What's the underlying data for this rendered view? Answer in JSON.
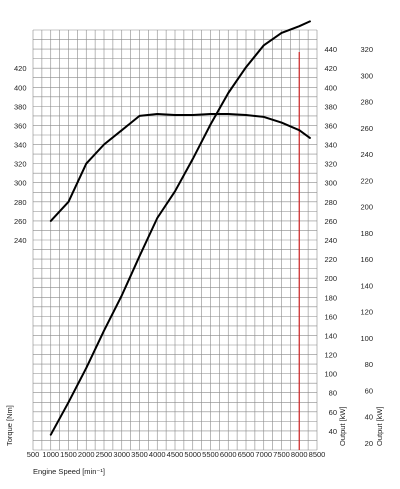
{
  "chart_data": {
    "type": "line",
    "title": "",
    "xlabel": "Engine Speed [min⁻¹]",
    "x_ticks": [
      "500",
      "1000",
      "1500",
      "2000",
      "2500",
      "3000",
      "3500",
      "4000",
      "4500",
      "5000",
      "5500",
      "6000",
      "6500",
      "7000",
      "7500",
      "8000",
      "8500"
    ],
    "xlim": [
      500,
      8500
    ],
    "grid": true,
    "axes": {
      "torque": {
        "label": "Torque [Nm]",
        "ticks": [
          "240",
          "260",
          "280",
          "300",
          "320",
          "340",
          "360",
          "380",
          "400",
          "420"
        ],
        "range": [
          20,
          460
        ]
      },
      "output_inner": {
        "label": "Output [kW]",
        "ticks": [
          "40",
          "60",
          "80",
          "100",
          "120",
          "140",
          "160",
          "180",
          "200",
          "220",
          "240",
          "260",
          "280",
          "300",
          "320",
          "340",
          "360",
          "380",
          "400",
          "420",
          "440"
        ],
        "range": [
          20,
          460
        ]
      },
      "output_outer": {
        "label": "Output [kW]",
        "ticks": [
          "20",
          "40",
          "60",
          "80",
          "100",
          "120",
          "140",
          "160",
          "180",
          "200",
          "220",
          "240",
          "260",
          "280",
          "300",
          "320"
        ],
        "range": [
          14.5,
          334.5
        ]
      }
    },
    "marker": {
      "x": 8000,
      "color": "#cc2222"
    },
    "series": [
      {
        "axis": "torque",
        "x": [
          1000,
          1500,
          2000,
          2500,
          3000,
          3500,
          4000,
          4500,
          5000,
          5500,
          6000,
          6500,
          7000,
          7500,
          8000,
          8300
        ],
        "y": [
          260,
          280,
          320,
          340,
          355,
          370,
          372,
          371,
          371,
          372,
          372,
          371,
          369,
          363,
          355,
          347
        ]
      },
      {
        "axis": "output",
        "x": [
          1000,
          1500,
          2000,
          2500,
          3000,
          3500,
          4000,
          4500,
          5000,
          5500,
          6000,
          6500,
          7000,
          7500,
          8000,
          8300
        ],
        "y": [
          36,
          70,
          106,
          145,
          182,
          223,
          263,
          291,
          325,
          361,
          394,
          421,
          444,
          457,
          464,
          469
        ]
      }
    ]
  }
}
